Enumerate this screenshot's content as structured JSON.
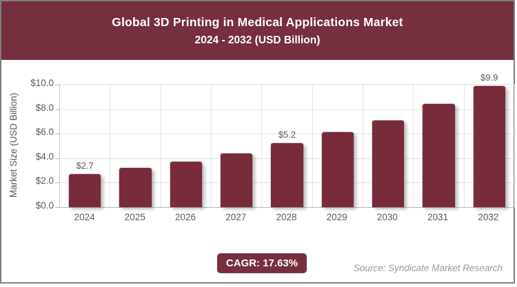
{
  "chart_data": {
    "type": "bar",
    "title": "Global 3D Printing in Medical Applications Market",
    "subtitle": "2024 - 2032 (USD Billion)",
    "categories": [
      "2024",
      "2025",
      "2026",
      "2027",
      "2028",
      "2029",
      "2030",
      "2031",
      "2032"
    ],
    "values": [
      2.7,
      3.2,
      3.7,
      4.4,
      5.2,
      6.1,
      7.1,
      8.4,
      9.9
    ],
    "bar_value_labels": [
      "$2.7",
      "",
      "",
      "",
      "$5.2",
      "",
      "",
      "",
      "$9.9"
    ],
    "ylabel": "Market Size (USD Billion)",
    "ylim": [
      0,
      10
    ],
    "yticks": [
      {
        "value": 0,
        "label": "$0.0"
      },
      {
        "value": 2,
        "label": "$2.0"
      },
      {
        "value": 4,
        "label": "$4.0"
      },
      {
        "value": 6,
        "label": "$6.0"
      },
      {
        "value": 8,
        "label": "$8.0"
      },
      {
        "value": 10,
        "label": "$10.0"
      }
    ],
    "grid": true,
    "legend": false
  },
  "footer": {
    "cagr_label": "CAGR: 17.63%",
    "source_text": "Source: Syndicate Market Research"
  },
  "colors": {
    "header_bg": "#752F3F",
    "badge_bg": "#752F3F",
    "bar": "#782B3A",
    "grid": "#e3e3e3",
    "axis": "#b9b9b9",
    "tick_text": "#595959",
    "value_text": "#595959",
    "source_text": "#9a9a9a",
    "title_text": "#ffffff",
    "card_border": "#7e7e7e"
  }
}
